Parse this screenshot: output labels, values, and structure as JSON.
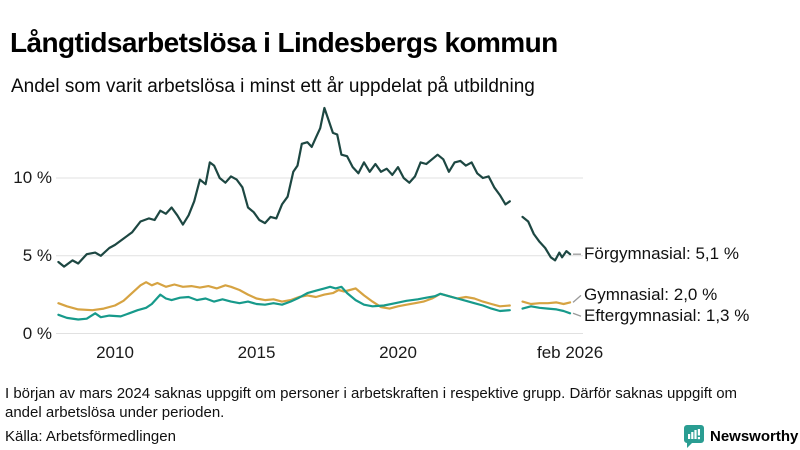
{
  "header": {
    "title": "Långtidsarbetslösa i Lindesbergs kommun",
    "subtitle": "Andel som varit arbetslösa i minst ett år uppdelat på utbildning"
  },
  "chart_data": {
    "type": "line",
    "title": "Långtidsarbetslösa i Lindesbergs kommun",
    "subtitle": "Andel som varit arbetslösa i minst ett år uppdelat på utbildning",
    "unit": "%",
    "grid": "horizontal",
    "colors": {
      "grid": "#e1e1e1",
      "connector": "#9a9a9a"
    },
    "x_axis": {
      "range_years": [
        2007.95,
        2026.5
      ],
      "ticks": [
        {
          "label": "2010",
          "year": 2010
        },
        {
          "label": "2015",
          "year": 2015
        },
        {
          "label": "2020",
          "year": 2020
        },
        {
          "label": "feb 2026",
          "year": 2026.08
        }
      ]
    },
    "y_axis": {
      "range": [
        0,
        15.3
      ],
      "ticks": [
        {
          "label": "0 %",
          "value": 0
        },
        {
          "label": "5 %",
          "value": 5
        },
        {
          "label": "10 %",
          "value": 10
        }
      ]
    },
    "data_gap": {
      "from_year": 2023.95,
      "to_year": 2024.4
    },
    "series": [
      {
        "name": "Förgymnasial",
        "end_label": "Förgymnasial: 5,1 %",
        "end_value": 5.1,
        "color": "#1d4742",
        "segments": [
          [
            [
              2008.0,
              4.6
            ],
            [
              2008.2,
              4.3
            ],
            [
              2008.5,
              4.7
            ],
            [
              2008.7,
              4.5
            ],
            [
              2009.0,
              5.1
            ],
            [
              2009.3,
              5.2
            ],
            [
              2009.5,
              5.0
            ],
            [
              2009.8,
              5.5
            ],
            [
              2010.0,
              5.7
            ],
            [
              2010.3,
              6.1
            ],
            [
              2010.6,
              6.5
            ],
            [
              2010.9,
              7.2
            ],
            [
              2011.2,
              7.4
            ],
            [
              2011.4,
              7.3
            ],
            [
              2011.6,
              7.9
            ],
            [
              2011.8,
              7.7
            ],
            [
              2012.0,
              8.1
            ],
            [
              2012.2,
              7.6
            ],
            [
              2012.4,
              7.0
            ],
            [
              2012.6,
              7.6
            ],
            [
              2012.8,
              8.5
            ],
            [
              2013.0,
              9.9
            ],
            [
              2013.2,
              9.6
            ],
            [
              2013.35,
              11.0
            ],
            [
              2013.5,
              10.8
            ],
            [
              2013.7,
              10.0
            ],
            [
              2013.9,
              9.7
            ],
            [
              2014.1,
              10.1
            ],
            [
              2014.3,
              9.9
            ],
            [
              2014.5,
              9.4
            ],
            [
              2014.7,
              8.1
            ],
            [
              2014.9,
              7.8
            ],
            [
              2015.1,
              7.3
            ],
            [
              2015.3,
              7.1
            ],
            [
              2015.5,
              7.5
            ],
            [
              2015.7,
              7.4
            ],
            [
              2015.9,
              8.3
            ],
            [
              2016.1,
              8.8
            ],
            [
              2016.3,
              10.4
            ],
            [
              2016.45,
              10.8
            ],
            [
              2016.6,
              12.2
            ],
            [
              2016.8,
              12.3
            ],
            [
              2016.95,
              12.0
            ],
            [
              2017.1,
              12.6
            ],
            [
              2017.25,
              13.2
            ],
            [
              2017.4,
              14.5
            ],
            [
              2017.55,
              13.7
            ],
            [
              2017.7,
              12.9
            ],
            [
              2017.85,
              12.8
            ],
            [
              2018.0,
              11.5
            ],
            [
              2018.2,
              11.4
            ],
            [
              2018.4,
              10.7
            ],
            [
              2018.6,
              10.3
            ],
            [
              2018.8,
              11.0
            ],
            [
              2019.0,
              10.4
            ],
            [
              2019.2,
              10.9
            ],
            [
              2019.4,
              10.4
            ],
            [
              2019.6,
              10.6
            ],
            [
              2019.8,
              10.2
            ],
            [
              2020.0,
              10.7
            ],
            [
              2020.2,
              10.0
            ],
            [
              2020.4,
              9.7
            ],
            [
              2020.6,
              10.1
            ],
            [
              2020.8,
              11.0
            ],
            [
              2021.0,
              10.9
            ],
            [
              2021.2,
              11.2
            ],
            [
              2021.4,
              11.5
            ],
            [
              2021.6,
              11.2
            ],
            [
              2021.8,
              10.4
            ],
            [
              2022.0,
              11.0
            ],
            [
              2022.2,
              11.1
            ],
            [
              2022.4,
              10.8
            ],
            [
              2022.6,
              11.0
            ],
            [
              2022.8,
              10.3
            ],
            [
              2023.0,
              10.0
            ],
            [
              2023.2,
              10.1
            ],
            [
              2023.4,
              9.4
            ],
            [
              2023.6,
              8.9
            ],
            [
              2023.8,
              8.3
            ],
            [
              2023.95,
              8.5
            ]
          ],
          [
            [
              2024.4,
              7.5
            ],
            [
              2024.6,
              7.2
            ],
            [
              2024.8,
              6.4
            ],
            [
              2025.0,
              5.9
            ],
            [
              2025.2,
              5.5
            ],
            [
              2025.4,
              4.9
            ],
            [
              2025.55,
              4.7
            ],
            [
              2025.7,
              5.2
            ],
            [
              2025.8,
              4.9
            ],
            [
              2025.95,
              5.3
            ],
            [
              2026.08,
              5.1
            ]
          ]
        ]
      },
      {
        "name": "Gymnasial",
        "end_label": "Gymnasial: 2,0 %",
        "end_value": 2.0,
        "color": "#d6a342",
        "segments": [
          [
            [
              2008.0,
              1.95
            ],
            [
              2008.3,
              1.75
            ],
            [
              2008.7,
              1.55
            ],
            [
              2009.2,
              1.5
            ],
            [
              2009.6,
              1.6
            ],
            [
              2010.0,
              1.8
            ],
            [
              2010.3,
              2.1
            ],
            [
              2010.6,
              2.6
            ],
            [
              2010.9,
              3.1
            ],
            [
              2011.1,
              3.3
            ],
            [
              2011.3,
              3.1
            ],
            [
              2011.5,
              3.25
            ],
            [
              2011.8,
              3.0
            ],
            [
              2012.1,
              3.15
            ],
            [
              2012.4,
              3.0
            ],
            [
              2012.7,
              3.05
            ],
            [
              2013.0,
              2.95
            ],
            [
              2013.3,
              3.05
            ],
            [
              2013.6,
              2.9
            ],
            [
              2013.9,
              3.1
            ],
            [
              2014.1,
              3.0
            ],
            [
              2014.4,
              2.8
            ],
            [
              2014.7,
              2.5
            ],
            [
              2015.0,
              2.25
            ],
            [
              2015.3,
              2.15
            ],
            [
              2015.6,
              2.2
            ],
            [
              2015.9,
              2.05
            ],
            [
              2016.2,
              2.15
            ],
            [
              2016.5,
              2.35
            ],
            [
              2016.8,
              2.45
            ],
            [
              2017.1,
              2.35
            ],
            [
              2017.4,
              2.5
            ],
            [
              2017.7,
              2.6
            ],
            [
              2017.9,
              2.8
            ],
            [
              2018.1,
              2.7
            ],
            [
              2018.3,
              2.8
            ],
            [
              2018.5,
              2.9
            ],
            [
              2018.8,
              2.45
            ],
            [
              2019.1,
              2.05
            ],
            [
              2019.4,
              1.7
            ],
            [
              2019.7,
              1.6
            ],
            [
              2020.0,
              1.75
            ],
            [
              2020.3,
              1.85
            ],
            [
              2020.6,
              1.95
            ],
            [
              2020.9,
              2.05
            ],
            [
              2021.2,
              2.25
            ],
            [
              2021.5,
              2.55
            ],
            [
              2021.8,
              2.4
            ],
            [
              2022.1,
              2.25
            ],
            [
              2022.4,
              2.35
            ],
            [
              2022.7,
              2.25
            ],
            [
              2023.0,
              2.05
            ],
            [
              2023.3,
              1.9
            ],
            [
              2023.6,
              1.75
            ],
            [
              2023.95,
              1.8
            ]
          ],
          [
            [
              2024.4,
              2.05
            ],
            [
              2024.7,
              1.9
            ],
            [
              2025.0,
              1.95
            ],
            [
              2025.3,
              1.95
            ],
            [
              2025.6,
              2.0
            ],
            [
              2025.85,
              1.9
            ],
            [
              2026.08,
              2.0
            ]
          ]
        ]
      },
      {
        "name": "Eftergymnasial",
        "end_label": "Eftergymnasial: 1,3 %",
        "end_value": 1.3,
        "color": "#179a8b",
        "segments": [
          [
            [
              2008.0,
              1.2
            ],
            [
              2008.3,
              1.0
            ],
            [
              2008.7,
              0.9
            ],
            [
              2009.0,
              0.95
            ],
            [
              2009.3,
              1.3
            ],
            [
              2009.5,
              1.05
            ],
            [
              2009.8,
              1.15
            ],
            [
              2010.2,
              1.1
            ],
            [
              2010.5,
              1.3
            ],
            [
              2010.8,
              1.5
            ],
            [
              2011.1,
              1.65
            ],
            [
              2011.3,
              1.9
            ],
            [
              2011.6,
              2.5
            ],
            [
              2011.8,
              2.25
            ],
            [
              2012.0,
              2.15
            ],
            [
              2012.3,
              2.3
            ],
            [
              2012.6,
              2.35
            ],
            [
              2012.9,
              2.15
            ],
            [
              2013.2,
              2.25
            ],
            [
              2013.5,
              2.05
            ],
            [
              2013.8,
              2.2
            ],
            [
              2014.1,
              2.05
            ],
            [
              2014.4,
              1.95
            ],
            [
              2014.7,
              2.05
            ],
            [
              2015.0,
              1.9
            ],
            [
              2015.3,
              1.85
            ],
            [
              2015.6,
              1.95
            ],
            [
              2015.9,
              1.85
            ],
            [
              2016.2,
              2.05
            ],
            [
              2016.5,
              2.3
            ],
            [
              2016.8,
              2.6
            ],
            [
              2017.1,
              2.75
            ],
            [
              2017.4,
              2.9
            ],
            [
              2017.6,
              3.0
            ],
            [
              2017.8,
              2.9
            ],
            [
              2018.0,
              3.0
            ],
            [
              2018.2,
              2.6
            ],
            [
              2018.5,
              2.15
            ],
            [
              2018.8,
              1.85
            ],
            [
              2019.1,
              1.75
            ],
            [
              2019.5,
              1.8
            ],
            [
              2019.9,
              1.95
            ],
            [
              2020.3,
              2.1
            ],
            [
              2020.7,
              2.2
            ],
            [
              2021.0,
              2.3
            ],
            [
              2021.3,
              2.4
            ],
            [
              2021.5,
              2.55
            ],
            [
              2021.8,
              2.4
            ],
            [
              2022.1,
              2.25
            ],
            [
              2022.4,
              2.1
            ],
            [
              2022.7,
              1.95
            ],
            [
              2023.0,
              1.8
            ],
            [
              2023.3,
              1.6
            ],
            [
              2023.6,
              1.45
            ],
            [
              2023.95,
              1.5
            ]
          ],
          [
            [
              2024.4,
              1.6
            ],
            [
              2024.7,
              1.75
            ],
            [
              2025.0,
              1.65
            ],
            [
              2025.3,
              1.6
            ],
            [
              2025.6,
              1.55
            ],
            [
              2025.85,
              1.45
            ],
            [
              2026.08,
              1.3
            ]
          ]
        ]
      }
    ]
  },
  "footer": {
    "note_lines": [
      "I början av mars 2024 saknas uppgift om personer i arbetskraften i respektive grupp. Därför saknas uppgift om",
      "andel arbetslösa under perioden."
    ],
    "source": "Källa: Arbetsförmedlingen",
    "logo_text": "Newsworthy",
    "logo_color": "#2a9d92"
  }
}
